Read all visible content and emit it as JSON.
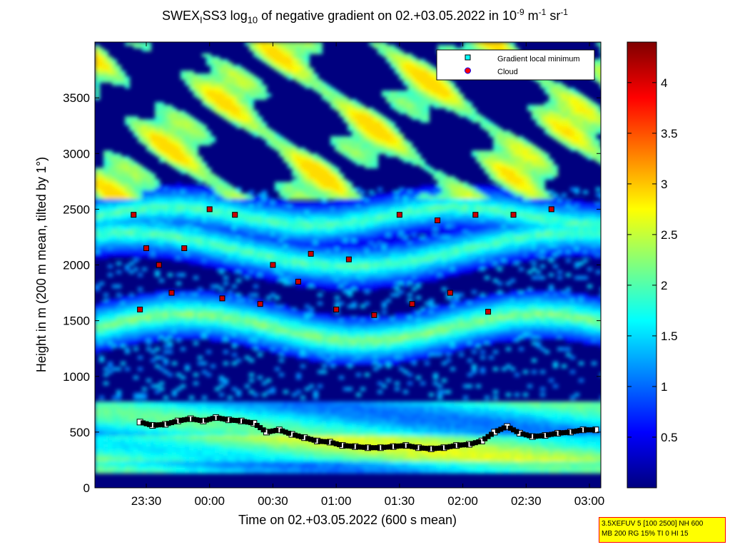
{
  "title": {
    "main": "SWEX",
    "sub1": "I",
    "mid": "SS3 log",
    "sub2": "10",
    "rest": " of negative gradient on 02.+03.05.2022 in 10",
    "sup1": "-9",
    "unit1": " m",
    "sup2": "-1",
    "unit2": " sr",
    "sup3": "-1"
  },
  "note": {
    "line1": "3.5XEFUV 5 [100 2500] NH 600",
    "line2": "MB 200 RG 15% TI 0 HI 15"
  },
  "chart_data": {
    "type": "heatmap",
    "xlabel": "Time on 02.+03.05.2022 (600 s mean)",
    "ylabel": "Height in m (200 m mean, tilted by 1°)",
    "x_ticks": [
      "23:30",
      "00:00",
      "00:30",
      "01:00",
      "01:30",
      "02:00",
      "02:30",
      "03:00"
    ],
    "y_ticks": [
      "0",
      "500",
      "1000",
      "1500",
      "2000",
      "2500",
      "3000",
      "3500"
    ],
    "ylim": [
      0,
      4000
    ],
    "colorbar": {
      "colormap": "jet",
      "range": [
        0,
        4.4
      ],
      "ticks": [
        "0.5",
        "1",
        "1.5",
        "2",
        "2.5",
        "3",
        "3.5",
        "4"
      ],
      "colors": [
        "#00007f",
        "#0000ff",
        "#007fff",
        "#00ffff",
        "#7fff7f",
        "#ffff00",
        "#ff7f00",
        "#ff0000",
        "#7f0000"
      ]
    },
    "legend": {
      "placement": "top-right",
      "entries": [
        {
          "label": "Gradient local minimum",
          "color": "#00ffff"
        },
        {
          "label": "Cloud",
          "color": "#ff0000"
        }
      ]
    },
    "series": [
      {
        "name": "Gradient local minimum",
        "x_hours": [
          -0.55,
          -0.45,
          -0.35,
          -0.25,
          -0.15,
          -0.05,
          0.05,
          0.15,
          0.25,
          0.35,
          0.45,
          0.55,
          0.65,
          0.75,
          0.85,
          0.95,
          1.05,
          1.15,
          1.25,
          1.35,
          1.45,
          1.55,
          1.65,
          1.75,
          1.85,
          1.95,
          2.05,
          2.15,
          2.25,
          2.35,
          2.45,
          2.55,
          2.65,
          2.75,
          2.85,
          2.95,
          3.05
        ],
        "y_m": [
          590,
          560,
          570,
          600,
          620,
          600,
          630,
          610,
          600,
          580,
          500,
          520,
          480,
          450,
          420,
          410,
          380,
          370,
          360,
          360,
          370,
          380,
          360,
          350,
          360,
          380,
          390,
          420,
          500,
          550,
          490,
          460,
          470,
          490,
          500,
          520,
          520
        ]
      },
      {
        "name": "Cloud",
        "x_hours": [
          -0.6,
          -0.5,
          -0.4,
          -0.2,
          0.0,
          0.2,
          0.5,
          0.8,
          1.1,
          1.5,
          1.8,
          2.1,
          2.4,
          2.7,
          -0.55,
          -0.3,
          0.1,
          0.4,
          0.7,
          1.0,
          1.3,
          1.6,
          1.9,
          2.2
        ],
        "y_m": [
          2450,
          2150,
          2000,
          2150,
          2500,
          2450,
          2000,
          2100,
          2050,
          2450,
          2400,
          2450,
          2450,
          2500,
          1600,
          1750,
          1700,
          1650,
          1850,
          1600,
          1550,
          1650,
          1750,
          1580
        ]
      }
    ]
  }
}
